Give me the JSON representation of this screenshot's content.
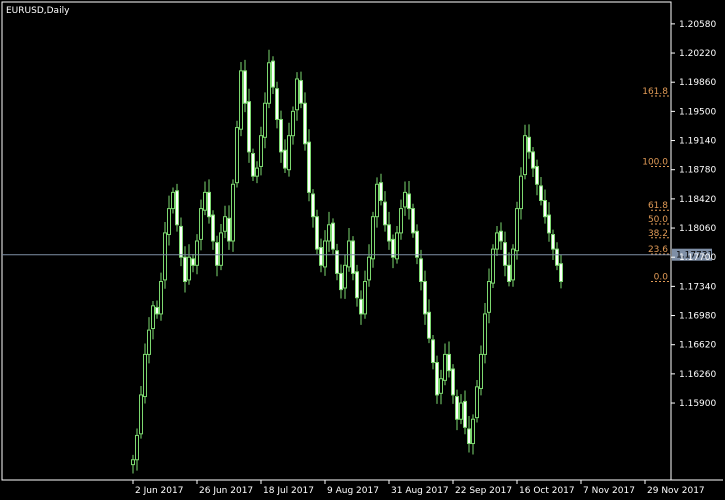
{
  "chart_data": {
    "type": "candlestick",
    "symbol_label": "EURUSD,Daily",
    "colors": {
      "background": "#000000",
      "frame": "#ffffff",
      "bull_body": "#000000",
      "bear_body": "#ffffff",
      "candle": "#7dd870",
      "fib_line": "#e09a56",
      "current_price_line": "#7f8fa6",
      "price_tag_bg": "#7f8fa6"
    },
    "y_axis": {
      "min": 1.1495,
      "max": 1.2085,
      "ticks": [
        1.2058,
        1.2022,
        1.1986,
        1.195,
        1.1914,
        1.1878,
        1.1842,
        1.1806,
        1.177,
        1.1734,
        1.1698,
        1.1662,
        1.1626,
        1.159
      ],
      "tick_labels": [
        "1.20580",
        "1.20220",
        "1.19860",
        "1.19500",
        "1.19140",
        "1.18780",
        "1.18420",
        "1.18060",
        "1.17700",
        "1.17340",
        "1.16980",
        "1.16620",
        "1.16260",
        "1.15900"
      ]
    },
    "x_axis": {
      "labels": [
        {
          "text": "2 Jun 2017",
          "bar": 0
        },
        {
          "text": "26 Jun 2017",
          "bar": 16
        },
        {
          "text": "18 Jul 2017",
          "bar": 32
        },
        {
          "text": "9 Aug 2017",
          "bar": 48
        },
        {
          "text": "31 Aug 2017",
          "bar": 64
        },
        {
          "text": "22 Sep 2017",
          "bar": 80
        },
        {
          "text": "16 Oct 2017",
          "bar": 96
        },
        {
          "text": "7 Nov 2017",
          "bar": 112
        },
        {
          "text": "29 Nov 2017",
          "bar": 128
        }
      ]
    },
    "current_price": 1.17731,
    "current_price_label": "1.17731",
    "fibonacci": [
      {
        "level": "161.8",
        "price": 1.1969
      },
      {
        "level": "100.0",
        "price": 1.1882
      },
      {
        "level": "61.8",
        "price": 1.1828
      },
      {
        "level": "50.0",
        "price": 1.1811
      },
      {
        "level": "38.2",
        "price": 1.1794
      },
      {
        "level": "23.6",
        "price": 1.1774
      },
      {
        "level": "0.0",
        "price": 1.174
      }
    ],
    "fib_start_bar": 131,
    "closes": [
      1.152,
      1.155,
      1.16,
      1.165,
      1.168,
      1.171,
      1.17,
      1.174,
      1.18,
      1.183,
      1.185,
      1.181,
      1.177,
      1.174,
      1.177,
      1.176,
      1.179,
      1.183,
      1.185,
      1.182,
      1.179,
      1.176,
      1.18,
      1.182,
      1.179,
      1.186,
      1.193,
      1.2,
      1.196,
      1.19,
      1.187,
      1.188,
      1.192,
      1.196,
      1.201,
      1.198,
      1.194,
      1.19,
      1.188,
      1.192,
      1.195,
      1.199,
      1.196,
      1.191,
      1.185,
      1.182,
      1.178,
      1.176,
      1.179,
      1.181,
      1.178,
      1.175,
      1.173,
      1.176,
      1.179,
      1.175,
      1.172,
      1.17,
      1.174,
      1.177,
      1.182,
      1.186,
      1.184,
      1.181,
      1.179,
      1.177,
      1.18,
      1.183,
      1.185,
      1.183,
      1.18,
      1.177,
      1.174,
      1.17,
      1.167,
      1.164,
      1.16,
      1.162,
      1.165,
      1.163,
      1.16,
      1.157,
      1.159,
      1.156,
      1.154,
      1.157,
      1.161,
      1.165,
      1.17,
      1.174,
      1.178,
      1.18,
      1.179,
      1.176,
      1.174,
      1.178,
      1.183,
      1.187,
      1.192,
      1.19,
      1.188,
      1.186,
      1.184,
      1.182,
      1.18,
      1.178,
      1.176,
      1.174
    ]
  }
}
